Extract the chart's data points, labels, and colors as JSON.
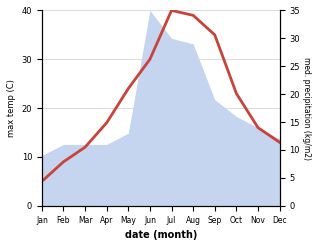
{
  "months": [
    "Jan",
    "Feb",
    "Mar",
    "Apr",
    "May",
    "Jun",
    "Jul",
    "Aug",
    "Sep",
    "Oct",
    "Nov",
    "Dec"
  ],
  "temp": [
    5,
    9,
    12,
    17,
    24,
    30,
    40,
    39,
    35,
    23,
    16,
    13
  ],
  "precip": [
    9,
    11,
    11,
    11,
    13,
    35,
    30,
    29,
    19,
    16,
    14,
    12
  ],
  "temp_color": "#c8433a",
  "precip_fill_color": "#c5d5f0",
  "temp_ylim": [
    0,
    40
  ],
  "precip_ylim": [
    0,
    35
  ],
  "ylabel_left": "max temp (C)",
  "ylabel_right": "med. precipitation (kg/m2)",
  "xlabel": "date (month)",
  "temp_yticks": [
    0,
    10,
    20,
    30,
    40
  ],
  "precip_yticks": [
    0,
    5,
    10,
    15,
    20,
    25,
    30,
    35
  ],
  "grid_color": "#cccccc",
  "line_width": 2.0
}
